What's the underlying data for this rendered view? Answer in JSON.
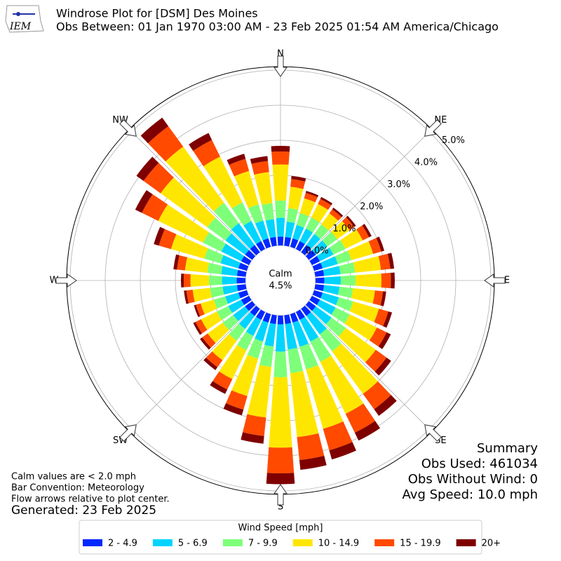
{
  "chart_data": {
    "type": "windrose",
    "title": "Windrose Plot for [DSM] Des Moines",
    "subtitle": "Obs Between: 01 Jan 1970 03:00 AM - 23 Feb 2025 01:54 AM America/Chicago",
    "categories": [
      null,
      null,
      null,
      null,
      null,
      null,
      null,
      null,
      null,
      null,
      null,
      null,
      null,
      null,
      null,
      null,
      null,
      null,
      null,
      null,
      null,
      null,
      null,
      null,
      null,
      null,
      null,
      null,
      null,
      null,
      null,
      null,
      null,
      null,
      null,
      null
    ],
    "direction_labels": [
      "N",
      "NE",
      "E",
      "SE",
      "S",
      "SW",
      "W",
      "NW"
    ],
    "calm_label": "Calm",
    "calm_value": 4.5,
    "calm_value_label": "4.5%",
    "ylim": [
      0,
      5.1
    ],
    "yticks": [
      {
        "value": 0,
        "label": "0.0%"
      },
      {
        "value": 1,
        "label": "1.0%"
      },
      {
        "value": 2,
        "label": "2.0%"
      },
      {
        "value": 3,
        "label": "3.0%"
      },
      {
        "value": 4,
        "label": "4.0%"
      },
      {
        "value": 5,
        "label": "5.0%"
      }
    ],
    "grid": true,
    "legend_title": "Wind Speed [mph]",
    "series": [
      {
        "name": "2 - 4.9",
        "color": "#0028ff",
        "values": [
          0.25,
          0.25,
          0.25,
          0.25,
          0.25,
          0.25,
          0.25,
          0.25,
          0.25,
          0.25,
          0.25,
          0.25,
          0.25,
          0.25,
          0.25,
          0.25,
          0.25,
          0.25,
          0.25,
          0.25,
          0.25,
          0.25,
          0.25,
          0.25,
          0.25,
          0.25,
          0.25,
          0.25,
          0.25,
          0.25,
          0.25,
          0.25,
          0.25,
          0.25,
          0.25,
          0.25
        ]
      },
      {
        "name": "5 - 6.9",
        "color": "#00d4ff",
        "values": [
          0.54,
          0.44,
          0.4,
          0.4,
          0.39,
          0.4,
          0.43,
          0.45,
          0.47,
          0.47,
          0.44,
          0.48,
          0.5,
          0.55,
          0.65,
          0.69,
          0.72,
          0.73,
          0.78,
          0.64,
          0.56,
          0.51,
          0.46,
          0.42,
          0.41,
          0.39,
          0.41,
          0.42,
          0.45,
          0.53,
          0.63,
          0.69,
          0.77,
          0.64,
          0.53,
          0.51
        ]
      },
      {
        "name": "7 - 9.9",
        "color": "#7dff7a",
        "values": [
          0.49,
          0.39,
          0.35,
          0.35,
          0.34,
          0.35,
          0.38,
          0.4,
          0.42,
          0.42,
          0.39,
          0.43,
          0.45,
          0.5,
          0.6,
          0.64,
          0.67,
          0.68,
          0.73,
          0.59,
          0.51,
          0.46,
          0.41,
          0.37,
          0.36,
          0.34,
          0.36,
          0.37,
          0.4,
          0.48,
          0.58,
          0.64,
          0.72,
          0.59,
          0.48,
          0.46
        ]
      },
      {
        "name": "10 - 14.9",
        "color": "#ffe600",
        "values": [
          1.03,
          0.61,
          0.44,
          0.43,
          0.39,
          0.44,
          0.55,
          0.65,
          0.74,
          0.74,
          0.63,
          0.76,
          0.86,
          1.06,
          1.5,
          1.65,
          1.76,
          1.83,
          2.01,
          1.45,
          1.11,
          0.91,
          0.69,
          0.53,
          0.5,
          0.39,
          0.5,
          0.53,
          0.64,
          0.99,
          1.42,
          1.65,
          1.98,
          1.45,
          0.99,
          0.89
        ]
      },
      {
        "name": "15 - 19.9",
        "color": "#ff4a00",
        "values": [
          0.37,
          0.22,
          0.16,
          0.16,
          0.14,
          0.16,
          0.2,
          0.24,
          0.27,
          0.27,
          0.23,
          0.28,
          0.31,
          0.38,
          0.54,
          0.6,
          0.64,
          0.66,
          0.73,
          0.53,
          0.4,
          0.33,
          0.25,
          0.19,
          0.18,
          0.14,
          0.18,
          0.19,
          0.23,
          0.36,
          0.52,
          0.6,
          0.72,
          0.53,
          0.36,
          0.32
        ]
      },
      {
        "name": "20+",
        "color": "#7f0000",
        "values": [
          0.16,
          0.09,
          0.06,
          0.06,
          0.06,
          0.06,
          0.08,
          0.09,
          0.11,
          0.11,
          0.09,
          0.11,
          0.13,
          0.16,
          0.23,
          0.25,
          0.27,
          0.28,
          0.31,
          0.22,
          0.17,
          0.14,
          0.1,
          0.08,
          0.07,
          0.06,
          0.07,
          0.08,
          0.1,
          0.15,
          0.21,
          0.25,
          0.3,
          0.22,
          0.15,
          0.14
        ]
      }
    ],
    "notes": [
      "Calm values are < 2.0 mph",
      "Bar Convention: Meteorology",
      "Flow arrows relative to plot center."
    ],
    "generated": "Generated: 23 Feb 2025",
    "summary": [
      "Summary",
      "Obs Used: 461034",
      "Obs Without Wind: 0",
      "Avg Speed: 10.0 mph"
    ]
  }
}
